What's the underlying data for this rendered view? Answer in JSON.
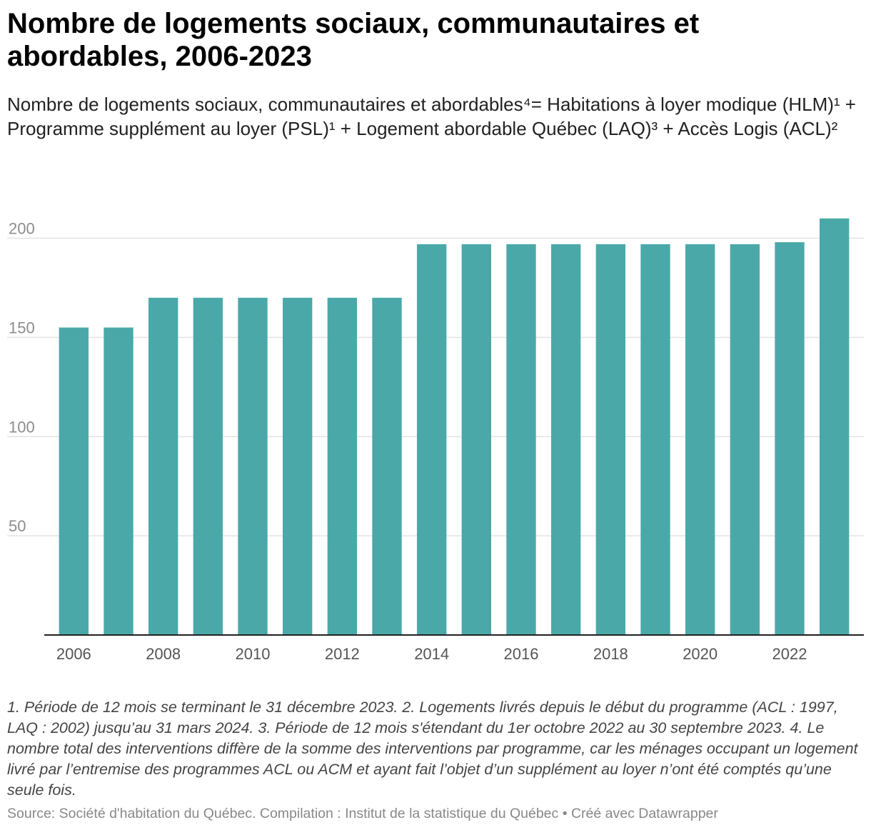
{
  "header": {
    "title": "Nombre de logements sociaux, communautaires et abordables, 2006-2023",
    "subtitle": "Nombre de logements sociaux, communautaires et abordables⁴= Habitations à loyer modique (HLM)¹ + Programme supplément au loyer (PSL)¹ + Logement abordable Québec (LAQ)³ + Accès Logis (ACL)²"
  },
  "footer": {
    "notes": "1. Période de 12 mois se terminant le 31 décembre 2023. 2. Logements livrés depuis le début du programme (ACL : 1997, LAQ : 2002) jusqu’au 31 mars 2024. 3. Période de 12 mois s'étendant du 1er octobre 2022 au 30 septembre 2023. 4. Le nombre total des interventions diffère de la somme des interventions par programme, car les ménages occupant un logement livré par l’entremise des programmes ACL ou ACM et ayant fait l’objet d’un supplément au loyer n’ont été comptés qu’une seule fois.",
    "source": "Source: Société d'habitation du Québec. Compilation : Institut de la statistique du Québec • Créé avec Datawrapper"
  },
  "colors": {
    "bar": "#4aa9a8",
    "grid": "#e3e3e3",
    "axis": "#222222"
  },
  "chart_data": {
    "type": "bar",
    "categories": [
      "2006",
      "2007",
      "2008",
      "2009",
      "2010",
      "2011",
      "2012",
      "2013",
      "2014",
      "2015",
      "2016",
      "2017",
      "2018",
      "2019",
      "2020",
      "2021",
      "2022",
      "2023"
    ],
    "values": [
      155,
      155,
      170,
      170,
      170,
      170,
      170,
      170,
      197,
      197,
      197,
      197,
      197,
      197,
      197,
      197,
      198,
      210
    ],
    "x_tick_labels": [
      "2006",
      "2008",
      "2010",
      "2012",
      "2014",
      "2016",
      "2018",
      "2020",
      "2022"
    ],
    "y_ticks": [
      50,
      100,
      150,
      200
    ],
    "ylim": [
      0,
      220
    ],
    "title": "Nombre de logements sociaux, communautaires et abordables, 2006-2023",
    "xlabel": "",
    "ylabel": "",
    "grid": true
  }
}
